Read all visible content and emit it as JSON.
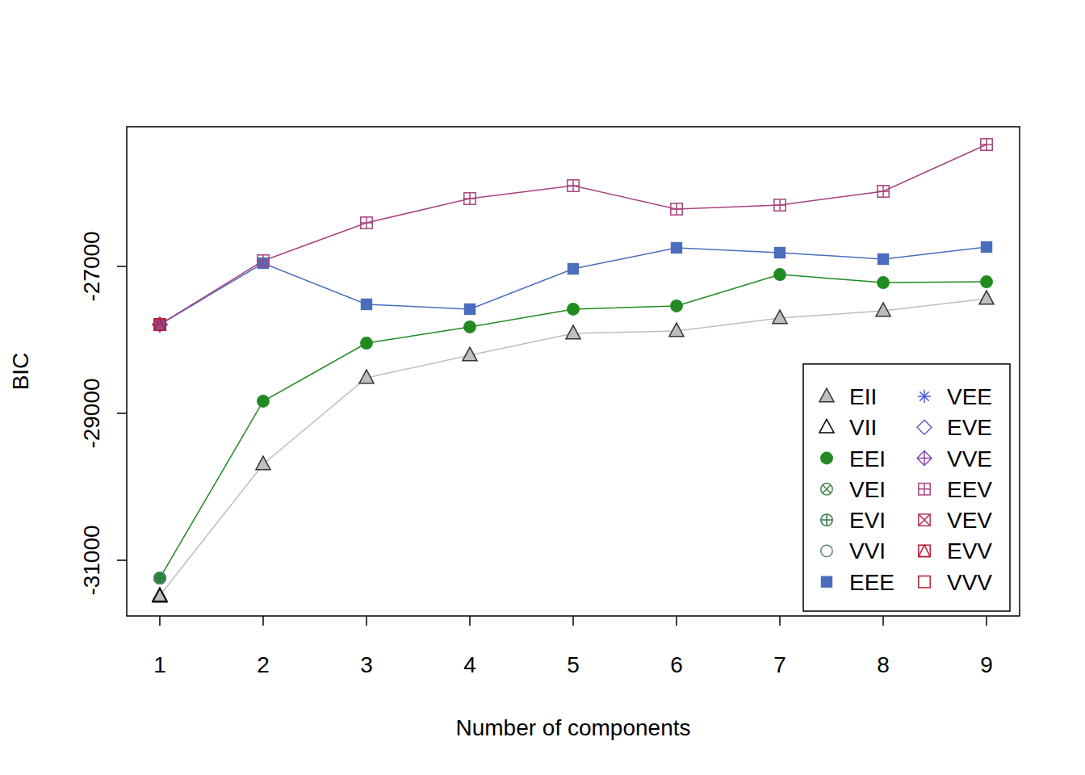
{
  "chart_data": {
    "type": "line",
    "x_label": "Number of components",
    "y_label": "BIC",
    "x": [
      1,
      2,
      3,
      4,
      5,
      6,
      7,
      8,
      9
    ],
    "xlim": [
      0.68,
      9.32
    ],
    "ylim": [
      -31758,
      -25099
    ],
    "xticks": [
      1,
      2,
      3,
      4,
      5,
      6,
      7,
      8,
      9
    ],
    "yticks": [
      -31000,
      -29000,
      -27000
    ],
    "grid": false,
    "legend": "bottom-right",
    "series": [
      {
        "name": "EII",
        "color": "#bebebe",
        "marker": "triangle-filled",
        "line_style": "solid",
        "values": [
          -31480,
          -29692,
          -28516,
          -28209,
          -27912,
          -27879,
          -27703,
          -27604,
          -27440
        ]
      },
      {
        "name": "VII",
        "color": "#000000",
        "marker": "triangle",
        "line_style": "solid",
        "values": [
          -31495,
          null,
          null,
          null,
          null,
          null,
          null,
          null,
          null
        ]
      },
      {
        "name": "EEI",
        "color": "#218b21",
        "marker": "circle-filled",
        "line_style": "solid",
        "values": [
          -31242,
          -28835,
          -28044,
          -27824,
          -27582,
          -27538,
          -27110,
          -27220,
          -27209
        ]
      },
      {
        "name": "VEI",
        "color": "#41884f",
        "marker": "circle-x",
        "line_style": "solid",
        "values": [
          -31242,
          null,
          null,
          null,
          null,
          null,
          null,
          null,
          null
        ]
      },
      {
        "name": "EVI",
        "color": "#2f7a3f",
        "marker": "circle-plus",
        "line_style": "solid",
        "values": [
          -31242,
          null,
          null,
          null,
          null,
          null,
          null,
          null,
          null
        ]
      },
      {
        "name": "VVI",
        "color": "#58807f",
        "marker": "circle",
        "line_style": "solid",
        "values": [
          -31242,
          null,
          null,
          null,
          null,
          null,
          null,
          null,
          null
        ]
      },
      {
        "name": "EEE",
        "color": "#4a6ebd",
        "marker": "square-filled",
        "line_style": "solid",
        "values": [
          -27791,
          -26956,
          -27516,
          -27582,
          -27033,
          -26747,
          -26813,
          -26901,
          -26736
        ]
      },
      {
        "name": "VEE",
        "color": "#4f5fd8",
        "marker": "asterisk",
        "line_style": "solid",
        "values": [
          -27791,
          null,
          null,
          null,
          null,
          null,
          null,
          null,
          null
        ]
      },
      {
        "name": "EVE",
        "color": "#6e55d0",
        "marker": "diamond",
        "line_style": "solid",
        "values": [
          -27791,
          null,
          null,
          null,
          null,
          null,
          null,
          null,
          null
        ]
      },
      {
        "name": "VVE",
        "color": "#8b48b0",
        "marker": "diamond-plus",
        "line_style": "solid",
        "values": [
          -27791,
          null,
          null,
          null,
          null,
          null,
          null,
          null,
          null
        ]
      },
      {
        "name": "EEV",
        "color": "#a8437f",
        "marker": "square-plus",
        "line_style": "solid",
        "values": [
          -27791,
          -26923,
          -26407,
          -26077,
          -25901,
          -26220,
          -26165,
          -25978,
          -25341
        ]
      },
      {
        "name": "VEV",
        "color": "#b4355a",
        "marker": "square-x",
        "line_style": "solid",
        "values": [
          -27791,
          null,
          null,
          null,
          null,
          null,
          null,
          null,
          null
        ]
      },
      {
        "name": "EVV",
        "color": "#be1e38",
        "marker": "square-triangle",
        "line_style": "solid",
        "values": [
          -27791,
          null,
          null,
          null,
          null,
          null,
          null,
          null,
          null
        ]
      },
      {
        "name": "VVV",
        "color": "#be1e2d",
        "marker": "square",
        "line_style": "solid",
        "values": [
          -27791,
          null,
          null,
          null,
          null,
          null,
          null,
          null,
          null
        ]
      }
    ]
  }
}
